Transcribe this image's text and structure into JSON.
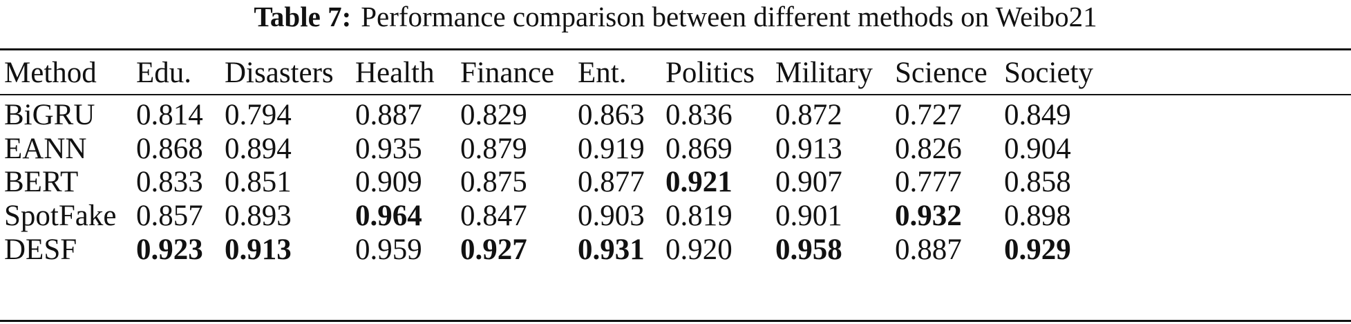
{
  "caption": {
    "label": "Table 7:",
    "text": "Performance comparison between different methods on Weibo21"
  },
  "table": {
    "columns": [
      "Method",
      "Edu.",
      "Disasters",
      "Health",
      "Finance",
      "Ent.",
      "Politics",
      "Military",
      "Science",
      "Society"
    ],
    "rows": [
      {
        "method": "BiGRU",
        "values": [
          "0.814",
          "0.794",
          "0.887",
          "0.829",
          "0.863",
          "0.836",
          "0.872",
          "0.727",
          "0.849"
        ],
        "best": [
          false,
          false,
          false,
          false,
          false,
          false,
          false,
          false,
          false
        ]
      },
      {
        "method": "EANN",
        "values": [
          "0.868",
          "0.894",
          "0.935",
          "0.879",
          "0.919",
          "0.869",
          "0.913",
          "0.826",
          "0.904"
        ],
        "best": [
          false,
          false,
          false,
          false,
          false,
          false,
          false,
          false,
          false
        ]
      },
      {
        "method": "BERT",
        "values": [
          "0.833",
          "0.851",
          "0.909",
          "0.875",
          "0.877",
          "0.921",
          "0.907",
          "0.777",
          "0.858"
        ],
        "best": [
          false,
          false,
          false,
          false,
          false,
          true,
          false,
          false,
          false
        ]
      },
      {
        "method": "SpotFake",
        "values": [
          "0.857",
          "0.893",
          "0.964",
          "0.847",
          "0.903",
          "0.819",
          "0.901",
          "0.932",
          "0.898"
        ],
        "best": [
          false,
          false,
          true,
          false,
          false,
          false,
          false,
          true,
          false
        ]
      },
      {
        "method": "DESF",
        "values": [
          "0.923",
          "0.913",
          "0.959",
          "0.927",
          "0.931",
          "0.920",
          "0.958",
          "0.887",
          "0.929"
        ],
        "best": [
          true,
          true,
          false,
          true,
          true,
          false,
          true,
          false,
          true
        ]
      }
    ]
  }
}
